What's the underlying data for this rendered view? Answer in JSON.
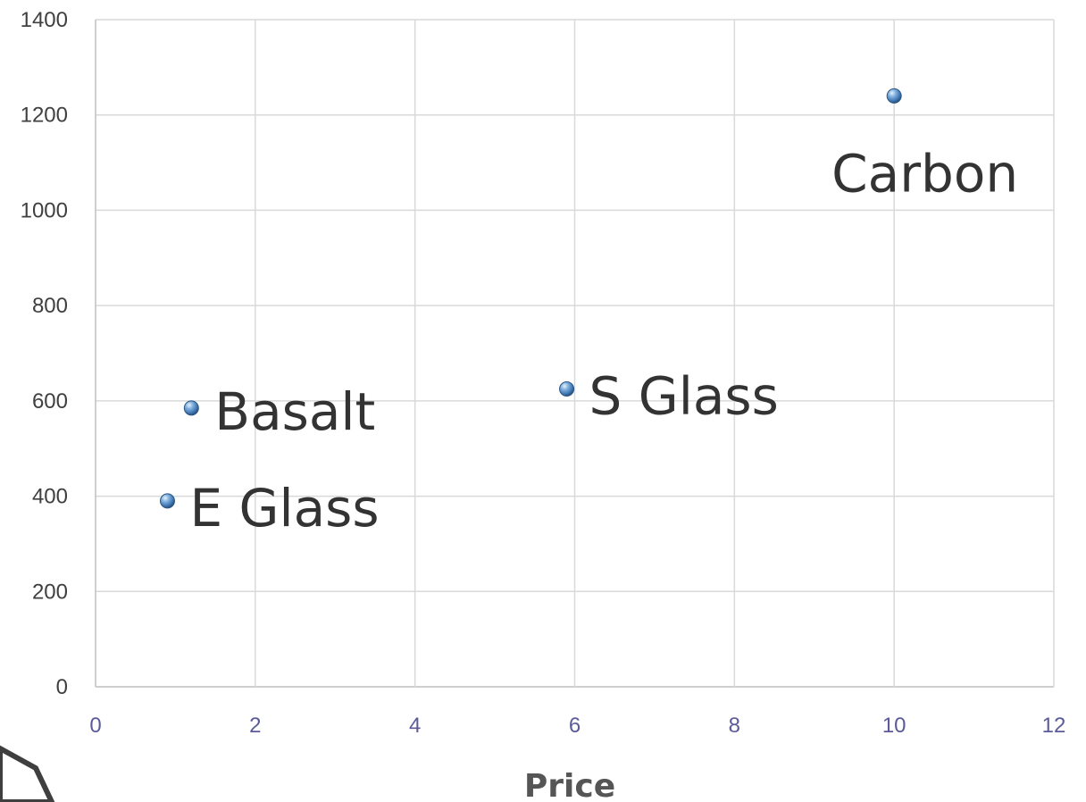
{
  "chart_data": {
    "type": "scatter",
    "title": "",
    "xlabel": "Price",
    "ylabel": "",
    "xlim": [
      0,
      12
    ],
    "ylim": [
      0,
      1400
    ],
    "x_ticks": [
      "0",
      "2",
      "4",
      "6",
      "8",
      "10",
      "12"
    ],
    "y_ticks": [
      "0",
      "200",
      "400",
      "600",
      "800",
      "1000",
      "1200",
      "1400"
    ],
    "grid": true,
    "marker_color": "#4a86c5",
    "points": [
      {
        "label": "E Glass",
        "x": 0.9,
        "y": 390
      },
      {
        "label": "Basalt",
        "x": 1.2,
        "y": 585
      },
      {
        "label": "S Glass",
        "x": 5.9,
        "y": 625
      },
      {
        "label": "Carbon",
        "x": 10.0,
        "y": 1240
      }
    ]
  }
}
